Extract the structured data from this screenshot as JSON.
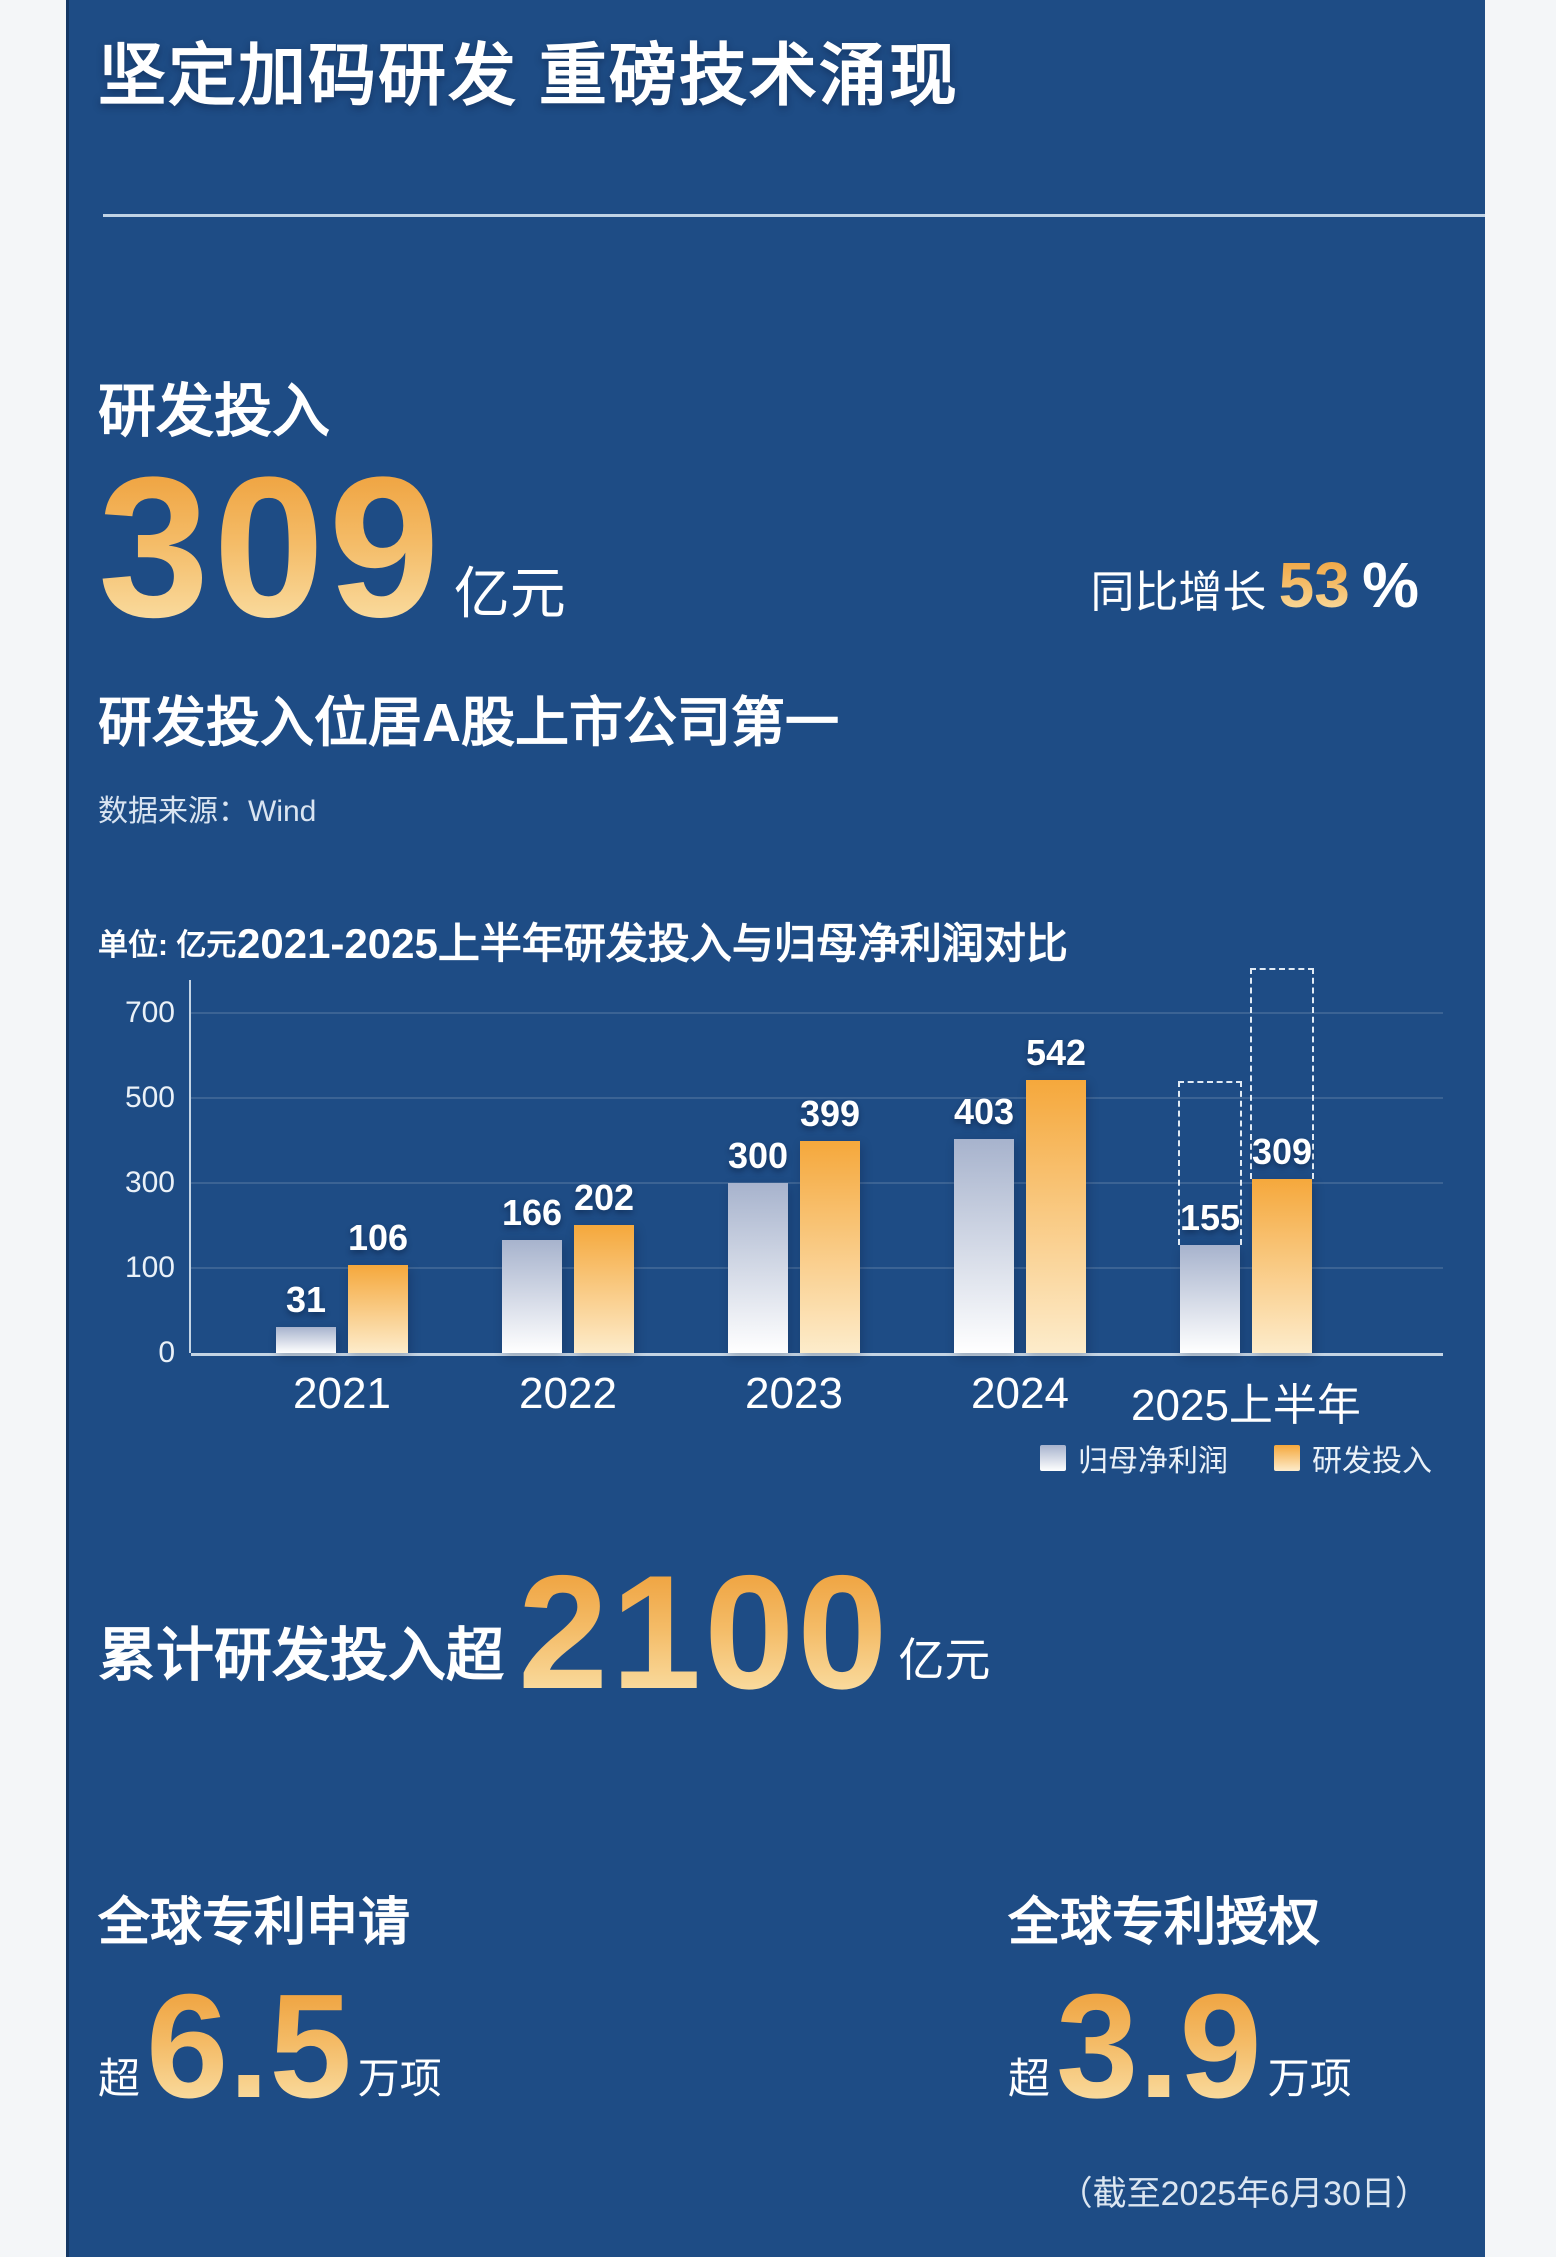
{
  "page": {
    "title": "坚定加码研发 重磅技术涌现",
    "footer_note": "（截至2025年6月30日）",
    "background_color": "#1e4c85",
    "accent_gold_top": "#ee9d36",
    "accent_gold_bottom": "#fbe4ae"
  },
  "rd_section": {
    "heading": "研发投入",
    "value": "309",
    "unit": "亿元",
    "yoy_label": "同比增长 ",
    "yoy_value": "53",
    "yoy_percent": "%",
    "rank_note": "研发投入位居A股上市公司第一",
    "source": "数据来源：Wind"
  },
  "chart_data": {
    "type": "bar",
    "title": "2021-2025上半年研发投入与归母净利润对比",
    "unit_label": "单位: 亿元",
    "categories": [
      "2021",
      "2022",
      "2023",
      "2024",
      "2025上半年"
    ],
    "series": [
      {
        "name": "归母净利润",
        "values": [
          31,
          166,
          300,
          403,
          155
        ],
        "color_top": "#a7b3cd",
        "color_bottom": "#ffffff"
      },
      {
        "name": "研发投入",
        "values": [
          106,
          202,
          399,
          542,
          309
        ],
        "color_top": "#f5a83c",
        "color_bottom": "#fdeccb"
      }
    ],
    "y_ticks": [
      0,
      100,
      300,
      500,
      700
    ],
    "y_axis_note": "nonlinear axis: ticks 0/100/300/500/700 evenly spaced",
    "grid": true,
    "legend_position": "bottom-right",
    "projections": [
      {
        "category_index": 4,
        "series_index": 0,
        "approx_top_value": 540,
        "style": "dashed-outline"
      },
      {
        "category_index": 4,
        "series_index": 1,
        "approx_top_value": 806,
        "style": "dashed-outline"
      }
    ]
  },
  "cumulative": {
    "prefix": "累计研发投入超",
    "value": "2100",
    "unit": "亿元"
  },
  "patents": {
    "left": {
      "title": "全球专利申请",
      "prefix": "超",
      "value": "6.5",
      "unit": "万项"
    },
    "right": {
      "title": "全球专利授权",
      "prefix": "超",
      "value": "3.9",
      "unit": "万项"
    }
  }
}
